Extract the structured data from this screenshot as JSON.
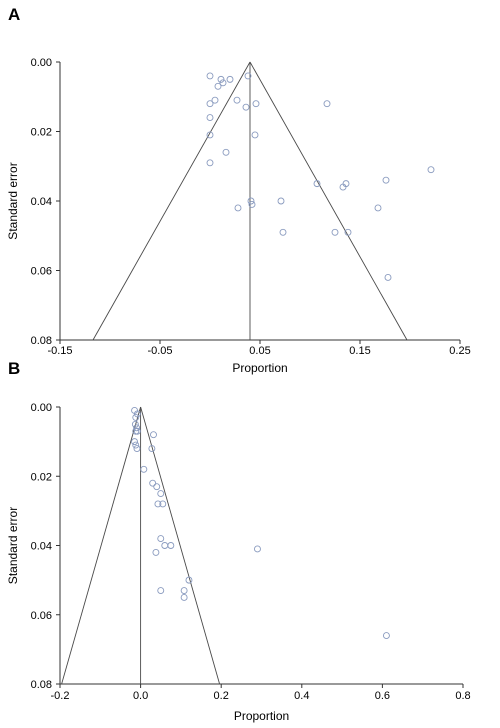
{
  "chart_data": [
    {
      "type": "scatter",
      "panel_label": "A",
      "xlabel": "Proportion",
      "ylabel": "Standard error",
      "xlim": [
        -0.15,
        0.25
      ],
      "ylim": [
        0.08,
        0.0
      ],
      "y_inverted": true,
      "xticks": [
        "-0.15",
        "-0.05",
        "0.05",
        "0.15",
        "0.25"
      ],
      "xtick_values": [
        -0.15,
        -0.05,
        0.05,
        0.15,
        0.25
      ],
      "yticks": [
        "0.00",
        "0.02",
        "0.04",
        "0.06",
        "0.08"
      ],
      "ytick_values": [
        0.0,
        0.02,
        0.04,
        0.06,
        0.08
      ],
      "pooled_estimate": 0.04,
      "funnel_apex_se": 0.0,
      "funnel_base_se": 0.08,
      "funnel_base_x": [
        -0.117,
        0.197
      ],
      "x": [
        0.0,
        0.008,
        0.011,
        0.013,
        0.02,
        0.038,
        0.0,
        0.005,
        0.027,
        0.036,
        0.046,
        0.117,
        0.0,
        0.0,
        0.045,
        0.016,
        0.0,
        0.107,
        0.133,
        0.221,
        0.136,
        0.176,
        0.041,
        0.071,
        0.042,
        0.028,
        0.168,
        0.073,
        0.138,
        0.125,
        0.178
      ],
      "y": [
        0.004,
        0.007,
        0.005,
        0.006,
        0.005,
        0.004,
        0.012,
        0.011,
        0.011,
        0.013,
        0.012,
        0.012,
        0.016,
        0.021,
        0.021,
        0.026,
        0.029,
        0.035,
        0.036,
        0.031,
        0.035,
        0.034,
        0.04,
        0.04,
        0.041,
        0.042,
        0.042,
        0.049,
        0.049,
        0.049,
        0.062
      ]
    },
    {
      "type": "scatter",
      "panel_label": "B",
      "xlabel": "Proportion",
      "ylabel": "Standard error",
      "xlim": [
        -0.2,
        0.8
      ],
      "ylim": [
        0.08,
        0.0
      ],
      "y_inverted": true,
      "xticks": [
        "-0.2",
        "0.0",
        "0.2",
        "0.4",
        "0.6",
        "0.8"
      ],
      "xtick_values": [
        -0.2,
        0.0,
        0.2,
        0.4,
        0.6,
        0.8
      ],
      "yticks": [
        "0.00",
        "0.02",
        "0.04",
        "0.06",
        "0.08"
      ],
      "ytick_values": [
        0.0,
        0.02,
        0.04,
        0.06,
        0.08
      ],
      "pooled_estimate": 0.0,
      "funnel_apex_se": 0.0,
      "funnel_base_se": 0.08,
      "funnel_base_x": [
        -0.196,
        0.196
      ],
      "x": [
        -0.015,
        -0.008,
        -0.012,
        -0.013,
        -0.01,
        -0.008,
        -0.012,
        -0.015,
        -0.012,
        -0.009,
        0.032,
        0.028,
        0.008,
        0.03,
        0.04,
        0.05,
        0.043,
        0.055,
        0.05,
        0.075,
        0.038,
        0.29,
        0.06,
        0.05,
        0.12,
        0.108,
        0.108,
        0.61
      ],
      "y": [
        0.001,
        0.002,
        0.003,
        0.005,
        0.006,
        0.007,
        0.007,
        0.01,
        0.011,
        0.012,
        0.008,
        0.012,
        0.018,
        0.022,
        0.023,
        0.025,
        0.028,
        0.028,
        0.038,
        0.04,
        0.042,
        0.041,
        0.04,
        0.053,
        0.05,
        0.053,
        0.055,
        0.066
      ]
    }
  ]
}
